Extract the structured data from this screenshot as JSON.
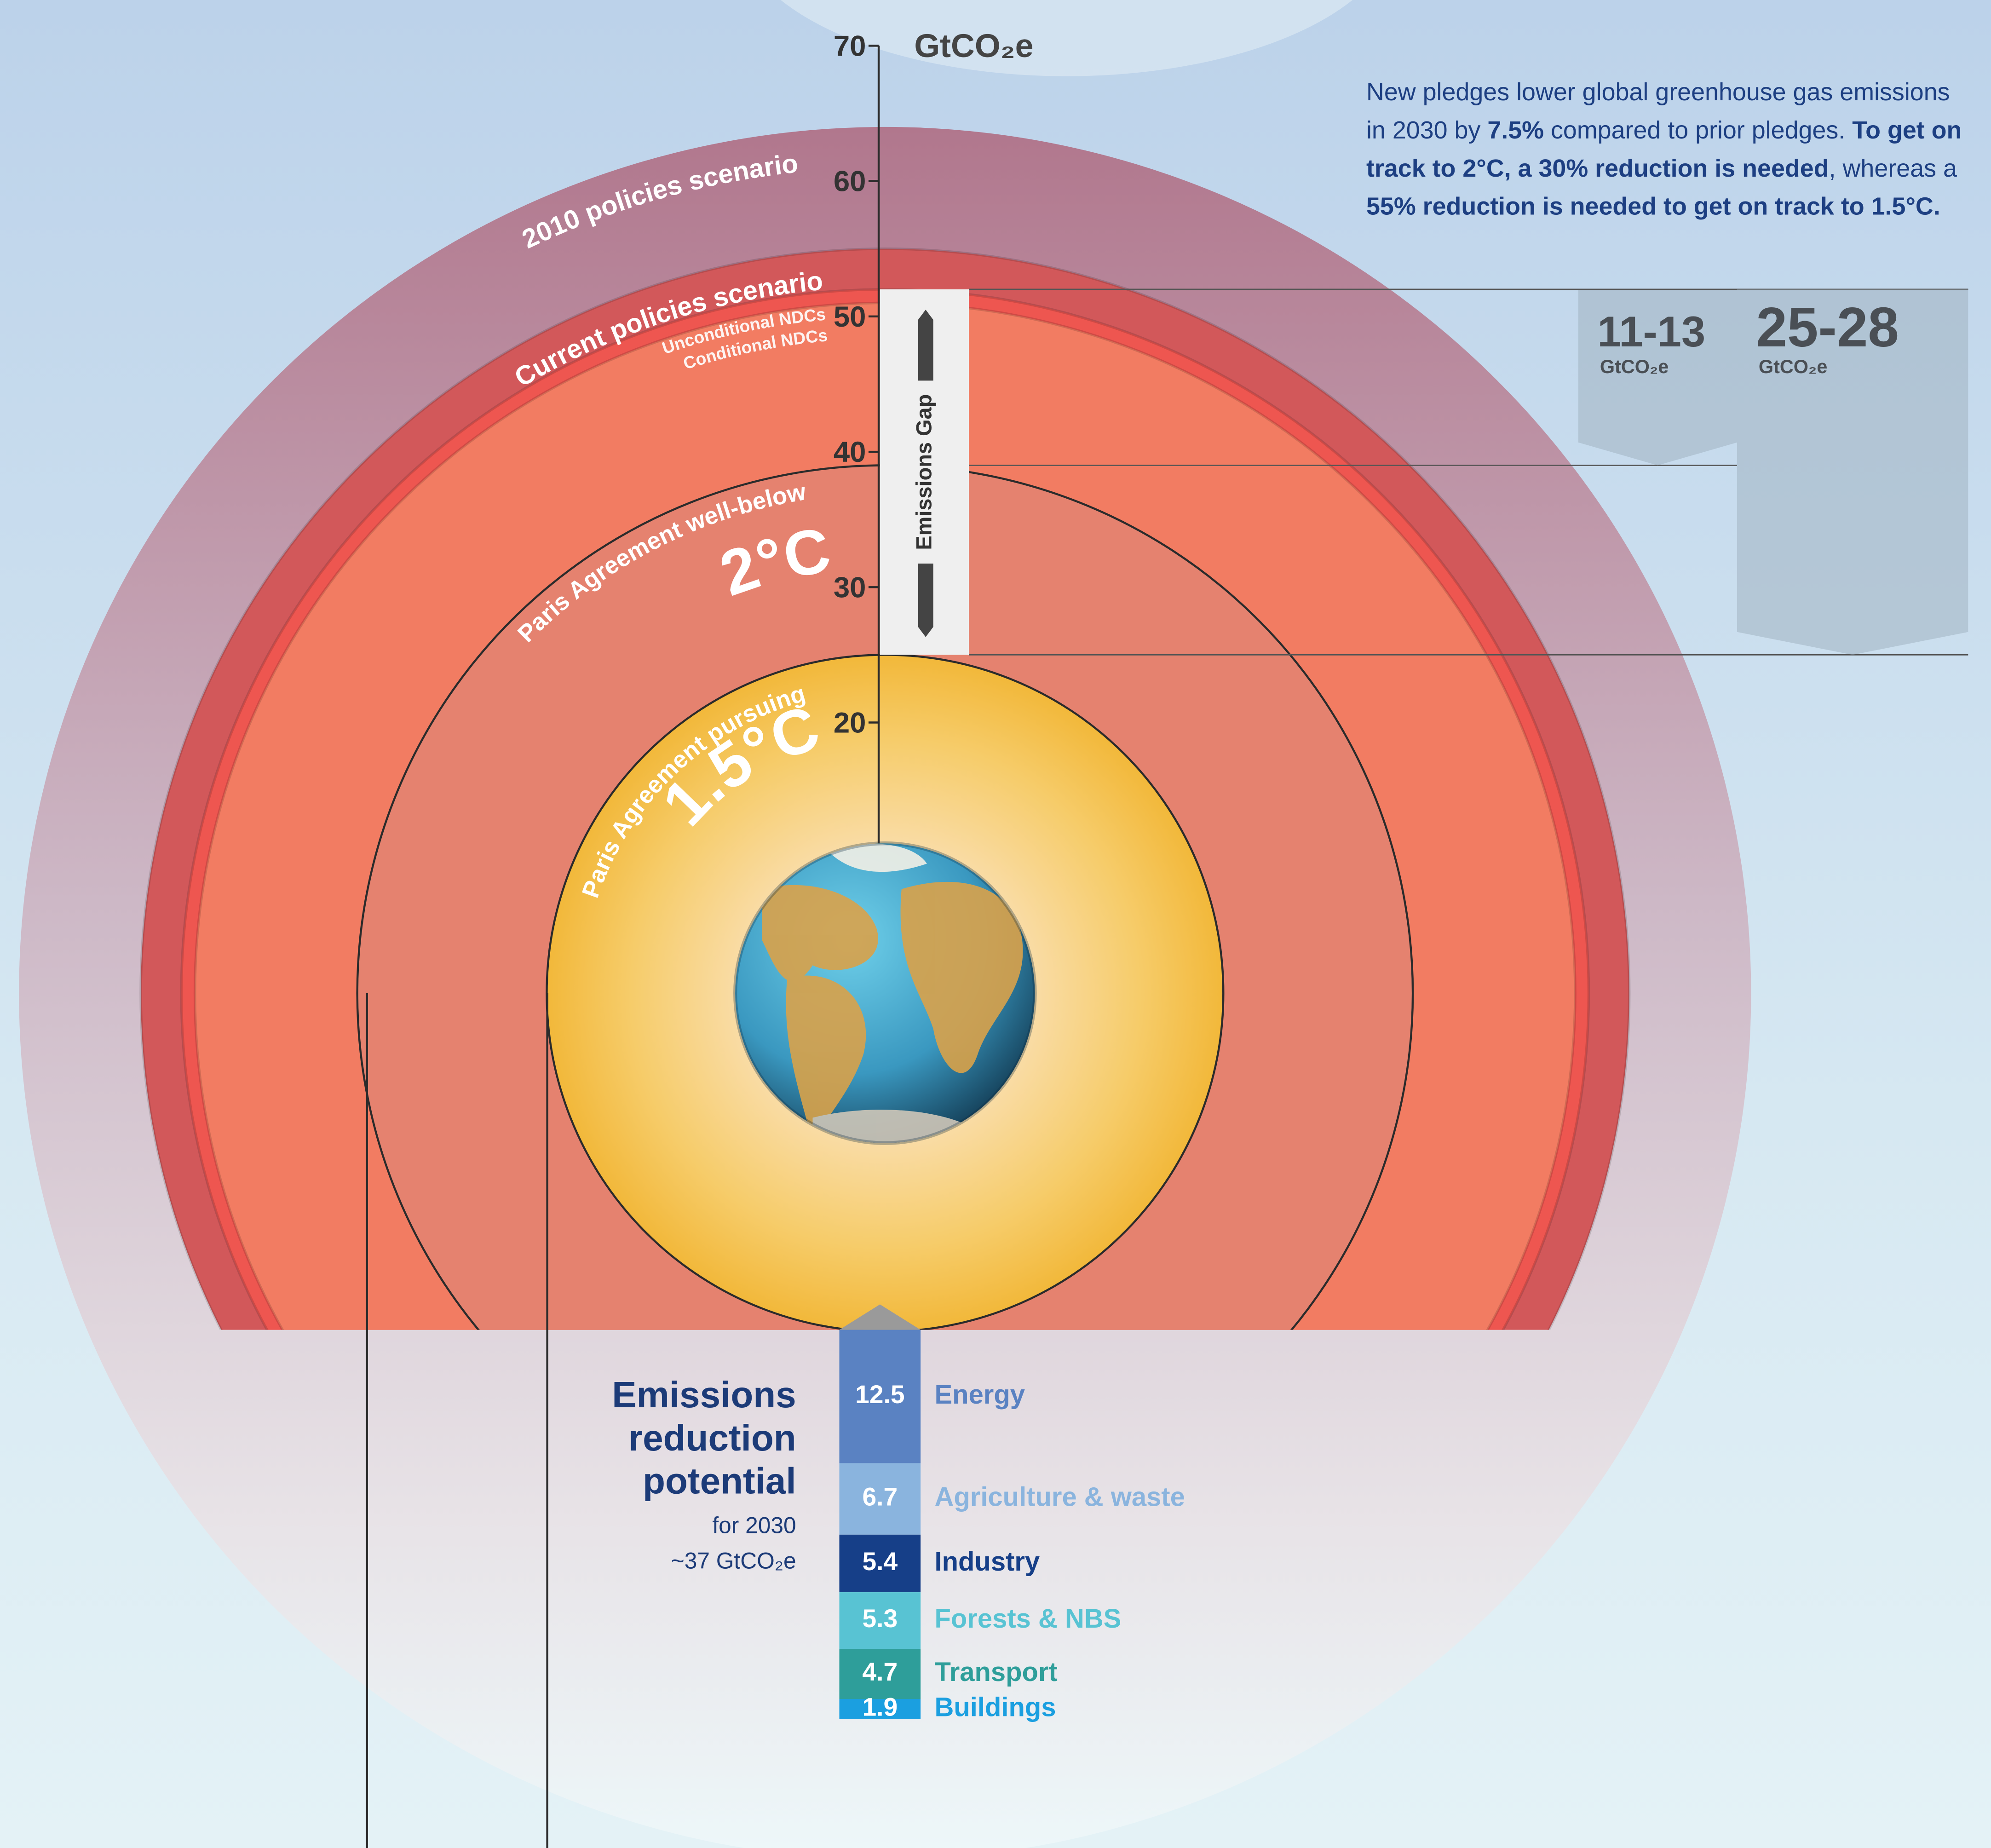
{
  "chart_data": [
    {
      "type": "rings",
      "y_label": "GtCO₂e",
      "ylim": [
        0,
        70
      ],
      "yticks": [
        20,
        30,
        40,
        50,
        60,
        70
      ],
      "categories": [
        "2010 policies scenario",
        "Current policies scenario",
        "Unconditional NDCs",
        "Conditional NDCs",
        "Paris Agreement well-below",
        "Paris Agreement pursuing"
      ],
      "values": [
        64,
        55,
        52,
        51,
        39,
        25
      ],
      "labels": [
        null,
        null,
        null,
        null,
        "2°C",
        "1.5°C"
      ],
      "colors": [
        "#b87c90",
        "#d2585a",
        "#ee5650",
        "#f27c62",
        "#e5826f",
        "#f2bb40"
      ],
      "gap": {
        "label": "Emissions Gap",
        "range": [
          25,
          52
        ]
      },
      "annotations": [
        {
          "label": "11-13",
          "unit": "GtCO₂e",
          "range": [
            39,
            52
          ]
        },
        {
          "label": "25-28",
          "unit": "GtCO₂e",
          "range": [
            25,
            52
          ]
        }
      ],
      "note": [
        {
          "text": "New pledges lower global greenhouse gas emissions in 2030 by ",
          "bold": false
        },
        {
          "text": "7.5%",
          "bold": true
        },
        {
          "text": " compared to prior pledges. ",
          "bold": false
        },
        {
          "text": "To get on track to 2°C, a 30% reduction is needed",
          "bold": true
        },
        {
          "text": ", whereas a ",
          "bold": false
        },
        {
          "text": "55% reduction is needed to get on track to 1.5°C.",
          "bold": true
        }
      ]
    },
    {
      "type": "stacked-bar",
      "title": "Emissions reduction potential",
      "subtitle": "for 2030",
      "total_label": "~37 GtCO₂e",
      "categories": [
        "Energy",
        "Agriculture & waste",
        "Industry",
        "Forests & NBS",
        "Transport",
        "Buildings"
      ],
      "values": [
        12.5,
        6.7,
        5.4,
        5.3,
        4.7,
        1.9
      ],
      "colors": [
        "#5a82c2",
        "#8ab4de",
        "#163f88",
        "#58c3d3",
        "#2e9e9a",
        "#1b9fe0"
      ]
    }
  ]
}
